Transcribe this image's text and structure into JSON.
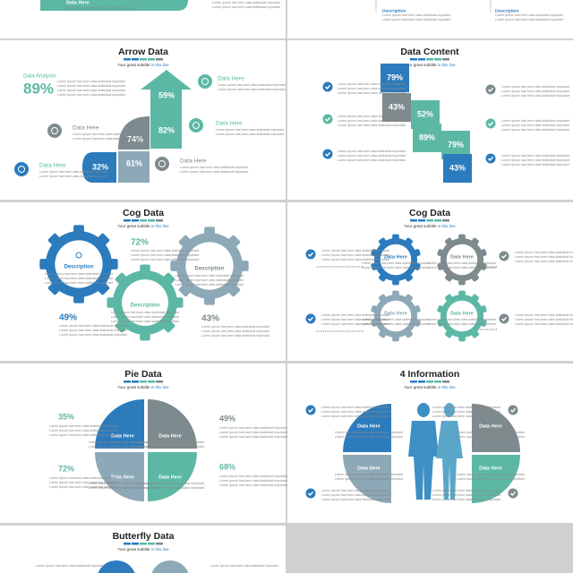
{
  "subtitle": {
    "lead": "Your great subtitle",
    "tail": "in this line"
  },
  "lorem": "Lorem ipsum has been data statistical important",
  "top_left": {
    "label": "Data Here"
  },
  "top_right": {
    "labels": [
      "Description",
      "Description"
    ]
  },
  "arrow_data": {
    "title": "Arrow Data",
    "analysis_label": "Data Analysis",
    "analysis_value": "89%",
    "values": [
      "59%",
      "82%",
      "74%",
      "61%",
      "32%"
    ],
    "labels": [
      "Data Here",
      "Data Here",
      "Data Here",
      "Data Here",
      "Data Here"
    ]
  },
  "data_content": {
    "title": "Data Content",
    "values": [
      "79%",
      "43%",
      "52%",
      "89%",
      "79%",
      "43%"
    ]
  },
  "cog_left": {
    "title": "Cog Data",
    "labels": [
      "Description",
      "Description",
      "Description"
    ],
    "values": [
      "72%",
      "49%",
      "43%"
    ]
  },
  "cog_right": {
    "title": "Cog Data",
    "labels": [
      "Data Here",
      "Data Here",
      "Data Here",
      "Data Here"
    ]
  },
  "pie_data": {
    "title": "Pie Data",
    "labels": [
      "Data Here",
      "Data Here",
      "Data Here",
      "Data Here"
    ],
    "values": [
      "35%",
      "49%",
      "72%",
      "68%"
    ]
  },
  "four_info": {
    "title": "4 Information",
    "labels": [
      "Data Here",
      "Data Here",
      "Data Here",
      "Data Here"
    ]
  },
  "butterfly": {
    "title": "Butterfly Data"
  }
}
